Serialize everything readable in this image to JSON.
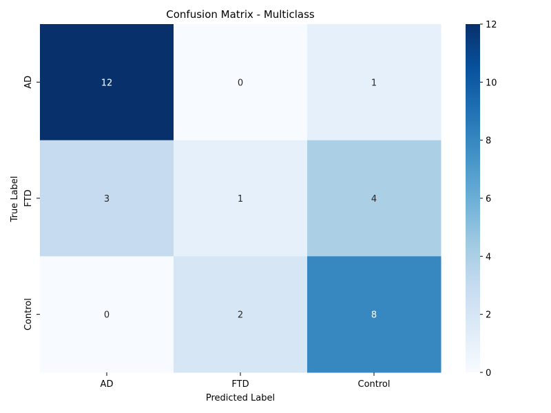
{
  "chart_data": {
    "type": "heatmap",
    "title": "Confusion Matrix - Multiclass",
    "xlabel": "Predicted Label",
    "ylabel": "True Label",
    "x_categories": [
      "AD",
      "FTD",
      "Control"
    ],
    "y_categories": [
      "AD",
      "FTD",
      "Control"
    ],
    "values": [
      [
        12,
        0,
        1
      ],
      [
        3,
        1,
        4
      ],
      [
        0,
        2,
        8
      ]
    ],
    "colormap": "Blues",
    "vmin": 0,
    "vmax": 12,
    "colorbar_ticks": [
      "0",
      "2",
      "4",
      "6",
      "8",
      "10",
      "12"
    ],
    "colors": {
      "low": "#f7fbff",
      "high": "#08306b",
      "text_dark": "#262626",
      "text_light": "#ffffff"
    }
  }
}
